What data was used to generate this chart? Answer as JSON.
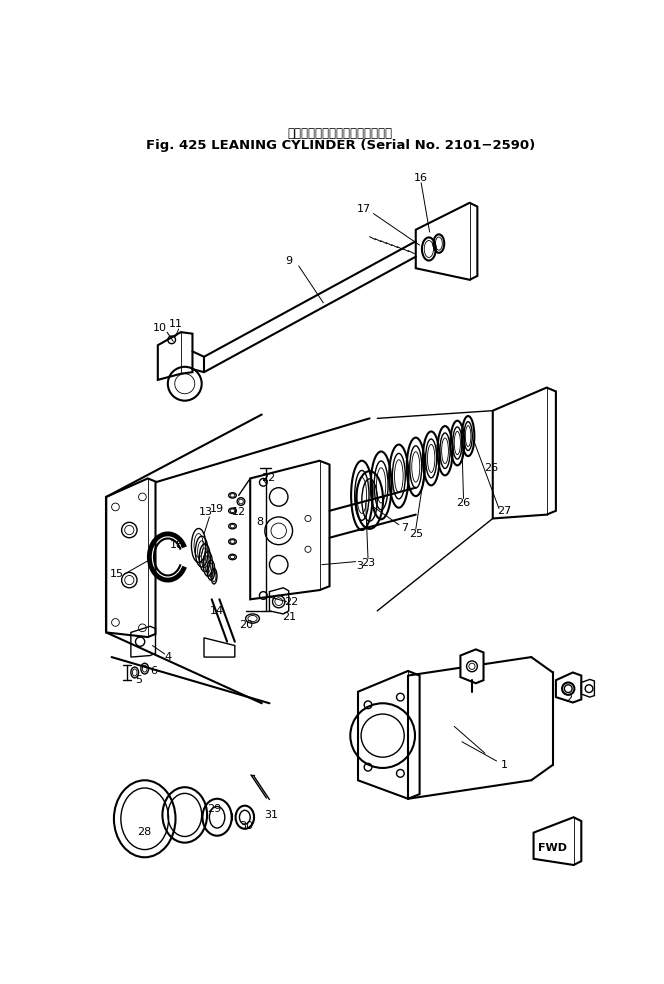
{
  "title_line1": "リーニング　シリンダ（適用号機",
  "title_line2": "Fig. 425 LEANING CYLINDER (Serial No. 2101−2590)",
  "bg_color": "#ffffff",
  "fig_width": 6.64,
  "fig_height": 9.84,
  "dpi": 100
}
